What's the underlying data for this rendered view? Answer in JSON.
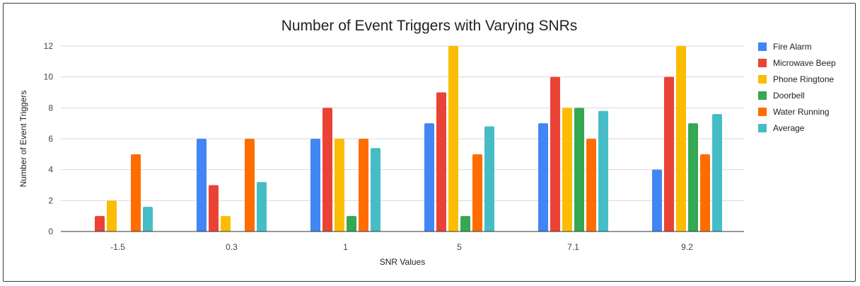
{
  "chart_data": {
    "type": "bar",
    "title": "Number of Event Triggers with Varying SNRs",
    "xlabel": "SNR Values",
    "ylabel": "Number of Event Triggers",
    "categories": [
      "-1.5",
      "0.3",
      "1",
      "5",
      "7.1",
      "9.2"
    ],
    "ylim": [
      0,
      12
    ],
    "yticks": [
      "0",
      "2",
      "4",
      "6",
      "8",
      "10",
      "12"
    ],
    "grid": true,
    "legend_position": "right",
    "series": [
      {
        "name": "Fire Alarm",
        "color": "#4285f4",
        "values": [
          0,
          6,
          6,
          7,
          7,
          4
        ]
      },
      {
        "name": "Microwave Beep",
        "color": "#ea4335",
        "values": [
          1,
          3,
          8,
          9,
          10,
          10
        ]
      },
      {
        "name": "Phone Ringtone",
        "color": "#fbbc04",
        "values": [
          2,
          1,
          6,
          12,
          8,
          12
        ]
      },
      {
        "name": "Doorbell",
        "color": "#34a853",
        "values": [
          0,
          0,
          1,
          1,
          8,
          7
        ]
      },
      {
        "name": "Water Running",
        "color": "#ff6d01",
        "values": [
          5,
          6,
          6,
          5,
          6,
          5
        ]
      },
      {
        "name": "Average",
        "color": "#46bdc6",
        "values": [
          1.6,
          3.2,
          5.4,
          6.8,
          7.8,
          7.6
        ]
      }
    ]
  }
}
